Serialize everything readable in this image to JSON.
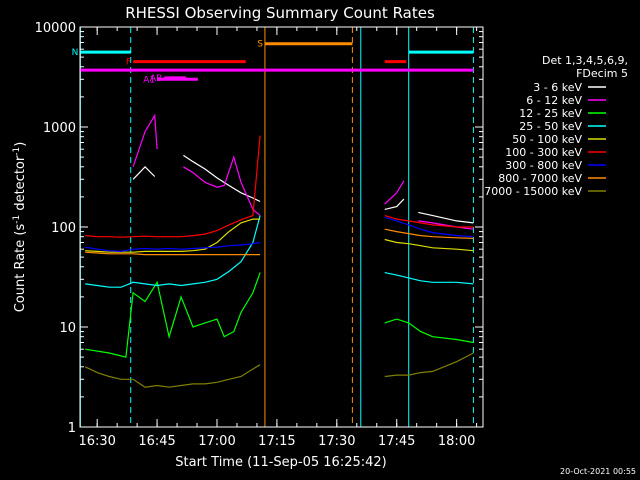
{
  "chart_data": {
    "type": "line",
    "title": "RHESSI Observing Summary Count Rates",
    "xlabel": "Start Time (11-Sep-05 16:25:42)",
    "ylabel": "Count Rate (s⁻¹ detector⁻¹)",
    "ylabel_main": "Count Rate (s",
    "ylabel_mid": " detector",
    "ylabel_end": ")",
    "ylabel_sup": "-1",
    "yscale": "log",
    "ylim": [
      1,
      10000
    ],
    "xlim": [
      16.42833,
      18.11
    ],
    "x_unit": "hour of day (UT)",
    "y_ticks": [
      1,
      10,
      100,
      1000,
      10000
    ],
    "y_tick_labels": [
      "1",
      "10",
      "100",
      "1000",
      "10000"
    ],
    "x_ticks": [
      16.5,
      16.75,
      17.0,
      17.25,
      17.5,
      17.75,
      18.0
    ],
    "x_tick_labels": [
      "16:30",
      "16:45",
      "17:00",
      "17:15",
      "17:30",
      "17:45",
      "18:00"
    ],
    "timestamp": "20-Oct-2021 00:55",
    "legend": {
      "placement": "right",
      "header": [
        "Det 1,3,4,5,6,9,",
        "FDecim 5"
      ]
    },
    "series": [
      {
        "name": "3 - 6 keV",
        "color": "#ffffff",
        "points": [
          [
            16.65,
            300
          ],
          [
            16.7,
            400
          ],
          [
            16.74,
            320
          ],
          [
            16.8,
            null
          ],
          [
            16.86,
            520
          ],
          [
            16.9,
            450
          ],
          [
            16.95,
            380
          ],
          [
            17.0,
            310
          ],
          [
            17.05,
            260
          ],
          [
            17.1,
            220
          ],
          [
            17.15,
            195
          ],
          [
            17.18,
            180
          ],
          [
            17.2,
            null
          ],
          [
            17.7,
            150
          ],
          [
            17.75,
            160
          ],
          [
            17.78,
            190
          ],
          [
            17.8,
            null
          ],
          [
            17.84,
            140
          ],
          [
            17.9,
            130
          ],
          [
            18.0,
            115
          ],
          [
            18.07,
            110
          ]
        ]
      },
      {
        "name": "6 - 12 keV",
        "color": "#ff00ff",
        "points": [
          [
            16.65,
            400
          ],
          [
            16.7,
            900
          ],
          [
            16.74,
            1300
          ],
          [
            16.75,
            600
          ],
          [
            16.8,
            null
          ],
          [
            16.86,
            400
          ],
          [
            16.9,
            350
          ],
          [
            16.95,
            280
          ],
          [
            17.0,
            250
          ],
          [
            17.03,
            260
          ],
          [
            17.07,
            500
          ],
          [
            17.1,
            280
          ],
          [
            17.15,
            150
          ],
          [
            17.18,
            130
          ],
          [
            17.2,
            null
          ],
          [
            17.7,
            170
          ],
          [
            17.75,
            220
          ],
          [
            17.78,
            290
          ],
          [
            17.8,
            null
          ],
          [
            17.84,
            115
          ],
          [
            17.9,
            110
          ],
          [
            18.0,
            100
          ],
          [
            18.07,
            95
          ]
        ]
      },
      {
        "name": "12 - 25 keV",
        "color": "#00ff00",
        "points": [
          [
            16.45,
            6
          ],
          [
            16.55,
            5.5
          ],
          [
            16.62,
            5
          ],
          [
            16.65,
            22
          ],
          [
            16.7,
            18
          ],
          [
            16.75,
            28
          ],
          [
            16.8,
            8
          ],
          [
            16.85,
            20
          ],
          [
            16.9,
            10
          ],
          [
            16.95,
            11
          ],
          [
            17.0,
            12
          ],
          [
            17.03,
            8
          ],
          [
            17.07,
            9
          ],
          [
            17.1,
            14
          ],
          [
            17.15,
            22
          ],
          [
            17.18,
            35
          ],
          [
            17.2,
            null
          ],
          [
            17.7,
            11
          ],
          [
            17.75,
            12
          ],
          [
            17.8,
            11
          ],
          [
            17.85,
            9
          ],
          [
            17.9,
            8
          ],
          [
            18.0,
            7.5
          ],
          [
            18.07,
            7
          ]
        ]
      },
      {
        "name": "25 - 50 keV",
        "color": "#00ffff",
        "points": [
          [
            16.45,
            27
          ],
          [
            16.5,
            26
          ],
          [
            16.55,
            25
          ],
          [
            16.6,
            25
          ],
          [
            16.65,
            28
          ],
          [
            16.7,
            27
          ],
          [
            16.75,
            26
          ],
          [
            16.8,
            27
          ],
          [
            16.85,
            26
          ],
          [
            16.9,
            27
          ],
          [
            16.95,
            28
          ],
          [
            17.0,
            30
          ],
          [
            17.05,
            36
          ],
          [
            17.1,
            45
          ],
          [
            17.15,
            70
          ],
          [
            17.18,
            130
          ],
          [
            17.2,
            null
          ],
          [
            17.7,
            35
          ],
          [
            17.75,
            33
          ],
          [
            17.8,
            31
          ],
          [
            17.85,
            29
          ],
          [
            17.9,
            28
          ],
          [
            18.0,
            28
          ],
          [
            18.07,
            27
          ]
        ]
      },
      {
        "name": "50 - 100 keV",
        "color": "#dddd00",
        "points": [
          [
            16.45,
            58
          ],
          [
            16.5,
            57
          ],
          [
            16.55,
            56
          ],
          [
            16.6,
            56
          ],
          [
            16.65,
            56
          ],
          [
            16.7,
            57
          ],
          [
            16.75,
            57
          ],
          [
            16.8,
            57
          ],
          [
            16.85,
            57
          ],
          [
            16.9,
            58
          ],
          [
            16.95,
            60
          ],
          [
            17.0,
            70
          ],
          [
            17.05,
            90
          ],
          [
            17.1,
            110
          ],
          [
            17.15,
            120
          ],
          [
            17.18,
            120
          ],
          [
            17.2,
            null
          ],
          [
            17.7,
            75
          ],
          [
            17.75,
            70
          ],
          [
            17.8,
            68
          ],
          [
            17.85,
            65
          ],
          [
            17.9,
            62
          ],
          [
            18.0,
            60
          ],
          [
            18.07,
            58
          ]
        ]
      },
      {
        "name": "100 - 300 keV",
        "color": "#ff0000",
        "points": [
          [
            16.45,
            82
          ],
          [
            16.5,
            80
          ],
          [
            16.55,
            80
          ],
          [
            16.6,
            79
          ],
          [
            16.65,
            80
          ],
          [
            16.7,
            81
          ],
          [
            16.75,
            80
          ],
          [
            16.8,
            80
          ],
          [
            16.85,
            80
          ],
          [
            16.9,
            82
          ],
          [
            16.95,
            85
          ],
          [
            17.0,
            92
          ],
          [
            17.05,
            105
          ],
          [
            17.1,
            118
          ],
          [
            17.15,
            130
          ],
          [
            17.18,
            820
          ],
          [
            17.2,
            null
          ],
          [
            17.7,
            130
          ],
          [
            17.75,
            120
          ],
          [
            17.8,
            115
          ],
          [
            17.85,
            110
          ],
          [
            17.9,
            105
          ],
          [
            18.0,
            100
          ],
          [
            18.07,
            100
          ]
        ]
      },
      {
        "name": "300 - 800 keV",
        "color": "#0000ff",
        "points": [
          [
            16.45,
            63
          ],
          [
            16.5,
            60
          ],
          [
            16.55,
            58
          ],
          [
            16.6,
            57
          ],
          [
            16.65,
            60
          ],
          [
            16.7,
            61
          ],
          [
            16.75,
            60
          ],
          [
            16.8,
            61
          ],
          [
            16.85,
            60
          ],
          [
            16.9,
            61
          ],
          [
            16.95,
            62
          ],
          [
            17.0,
            63
          ],
          [
            17.05,
            65
          ],
          [
            17.1,
            66
          ],
          [
            17.15,
            68
          ],
          [
            17.18,
            70
          ],
          [
            17.2,
            null
          ],
          [
            17.7,
            125
          ],
          [
            17.75,
            115
          ],
          [
            17.8,
            105
          ],
          [
            17.85,
            95
          ],
          [
            17.9,
            88
          ],
          [
            18.0,
            82
          ],
          [
            18.07,
            80
          ]
        ]
      },
      {
        "name": "800 - 7000 keV",
        "color": "#ff8c00",
        "points": [
          [
            16.45,
            56
          ],
          [
            16.5,
            55
          ],
          [
            16.55,
            54
          ],
          [
            16.6,
            54
          ],
          [
            16.65,
            54
          ],
          [
            16.7,
            53
          ],
          [
            16.75,
            53
          ],
          [
            16.8,
            53
          ],
          [
            16.85,
            53
          ],
          [
            16.9,
            53
          ],
          [
            16.95,
            53
          ],
          [
            17.0,
            53
          ],
          [
            17.05,
            53
          ],
          [
            17.1,
            53
          ],
          [
            17.15,
            53
          ],
          [
            17.18,
            53
          ],
          [
            17.2,
            null
          ],
          [
            17.7,
            95
          ],
          [
            17.75,
            90
          ],
          [
            17.8,
            86
          ],
          [
            17.85,
            82
          ],
          [
            17.9,
            80
          ],
          [
            18.0,
            78
          ],
          [
            18.07,
            77
          ]
        ]
      },
      {
        "name": "7000 - 15000 keV",
        "color": "#808000",
        "points": [
          [
            16.45,
            4
          ],
          [
            16.5,
            3.5
          ],
          [
            16.55,
            3.2
          ],
          [
            16.6,
            3
          ],
          [
            16.65,
            3
          ],
          [
            16.7,
            2.5
          ],
          [
            16.75,
            2.6
          ],
          [
            16.8,
            2.5
          ],
          [
            16.85,
            2.6
          ],
          [
            16.9,
            2.7
          ],
          [
            16.95,
            2.7
          ],
          [
            17.0,
            2.8
          ],
          [
            17.05,
            3
          ],
          [
            17.1,
            3.2
          ],
          [
            17.15,
            3.8
          ],
          [
            17.18,
            4.2
          ],
          [
            17.2,
            null
          ],
          [
            17.7,
            3.2
          ],
          [
            17.75,
            3.3
          ],
          [
            17.8,
            3.3
          ],
          [
            17.85,
            3.5
          ],
          [
            17.9,
            3.6
          ],
          [
            18.0,
            4.5
          ],
          [
            18.07,
            5.5
          ]
        ]
      }
    ],
    "flags": [
      {
        "name": "N",
        "color": "#00ffff",
        "level": 5600,
        "intervals": [
          [
            16.43,
            16.64
          ],
          [
            17.8,
            18.07
          ]
        ]
      },
      {
        "name": "S",
        "color": "#ff8c00",
        "level": 6800,
        "intervals": [
          [
            17.2,
            17.565
          ]
        ]
      },
      {
        "name": "F",
        "color": "#ff0000",
        "level": 4500,
        "intervals": [
          [
            16.65,
            17.12
          ],
          [
            17.7,
            17.79
          ]
        ]
      },
      {
        "name": "",
        "color": "#ff00ff",
        "level": 3700,
        "intervals": [
          [
            16.43,
            18.07
          ]
        ]
      },
      {
        "name": "AB",
        "color": "#ff00ff",
        "level": 3100,
        "intervals": [
          [
            16.78,
            16.87
          ]
        ]
      },
      {
        "name": "A1",
        "color": "#ff00ff",
        "level": 3000,
        "intervals": [
          [
            16.75,
            16.92
          ]
        ]
      }
    ],
    "vlines": [
      {
        "x": 16.43,
        "color": "#00ffff",
        "style": "solid"
      },
      {
        "x": 16.64,
        "color": "#00ffff",
        "style": "dashed"
      },
      {
        "x": 17.2,
        "color": "#ff8c00",
        "style": "solid"
      },
      {
        "x": 17.565,
        "color": "#ff8c00",
        "style": "dashed"
      },
      {
        "x": 17.6,
        "color": "#00ffff",
        "style": "solid"
      },
      {
        "x": 17.8,
        "color": "#00ffff",
        "style": "solid"
      },
      {
        "x": 18.07,
        "color": "#00ffff",
        "style": "dashed"
      }
    ]
  }
}
